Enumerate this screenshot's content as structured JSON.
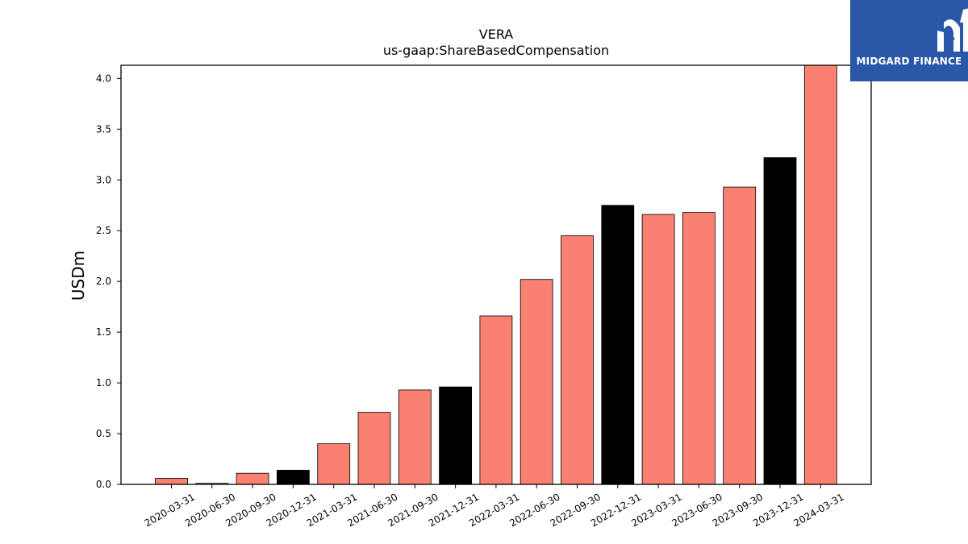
{
  "chart_data": {
    "type": "bar",
    "title": "VERA",
    "subtitle": "us-gaap:ShareBasedCompensation",
    "ylabel": "USDm",
    "xlabel": "",
    "ylim": [
      0,
      4.13
    ],
    "yticks": [
      "0.0",
      "0.5",
      "1.0",
      "1.5",
      "2.0",
      "2.5",
      "3.0",
      "3.5",
      "4.0"
    ],
    "grid": false,
    "categories": [
      "2020-03-31",
      "2020-06-30",
      "2020-09-30",
      "2020-12-31",
      "2021-03-31",
      "2021-06-30",
      "2021-09-30",
      "2021-12-31",
      "2022-03-31",
      "2022-06-30",
      "2022-09-30",
      "2022-12-31",
      "2023-03-31",
      "2023-06-30",
      "2023-09-30",
      "2023-12-31",
      "2024-03-31"
    ],
    "values": [
      0.06,
      0.01,
      0.11,
      0.14,
      0.4,
      0.71,
      0.93,
      0.96,
      1.66,
      2.02,
      2.45,
      2.75,
      2.66,
      2.68,
      2.93,
      3.22,
      4.13
    ],
    "colors": {
      "quarter": "#fa8072",
      "year_end": "#000000"
    },
    "bar_color_keys": [
      "quarter",
      "quarter",
      "quarter",
      "year_end",
      "quarter",
      "quarter",
      "quarter",
      "year_end",
      "quarter",
      "quarter",
      "quarter",
      "year_end",
      "quarter",
      "quarter",
      "quarter",
      "year_end",
      "quarter"
    ]
  },
  "logo": {
    "text": "MIDGARD FINANCE",
    "icon": "midgard-logo-icon",
    "background": "#2a57a8"
  }
}
